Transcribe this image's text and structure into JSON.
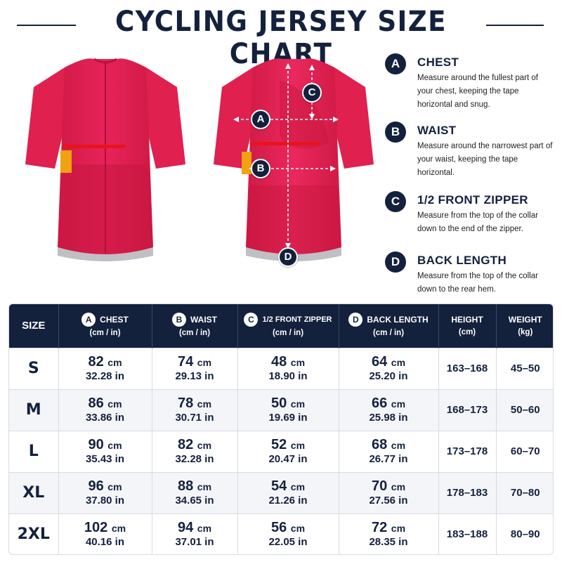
{
  "title": "CYCLING JERSEY SIZE CHART",
  "colors": {
    "navy": "#14213d",
    "jersey_red": "#e21f4f",
    "stripe_red": "#e8141c",
    "stripe_orange": "#f2a111"
  },
  "diagram_markers": [
    "A",
    "B",
    "C",
    "D"
  ],
  "legend": [
    {
      "letter": "A",
      "title": "CHEST",
      "desc": "Measure around the fullest part of your chest, keeping the tape horizontal and snug."
    },
    {
      "letter": "B",
      "title": "WAIST",
      "desc": "Measure around the narrowest part of your waist, keeping the tape horizontal."
    },
    {
      "letter": "C",
      "title": "1/2 FRONT ZIPPER",
      "desc": "Measure from the top of the collar down to the end of the zipper."
    },
    {
      "letter": "D",
      "title": "BACK LENGTH",
      "desc": "Measure from the top of the collar down to the rear hem."
    }
  ],
  "table": {
    "headers": {
      "size": "SIZE",
      "chest": {
        "badge": "A",
        "label": "CHEST",
        "unit": "(cm / in)"
      },
      "waist": {
        "badge": "B",
        "label": "WAIST",
        "unit": "(cm / in)"
      },
      "zipper": {
        "badge": "C",
        "label": "1/2 FRONT ZIPPER",
        "unit": "(cm / in)"
      },
      "back": {
        "badge": "D",
        "label": "BACK LENGTH",
        "unit": "(cm / in)"
      },
      "height": {
        "label": "HEIGHT",
        "unit": "(cm)"
      },
      "weight": {
        "label": "WEIGHT",
        "unit": "(kg)"
      }
    },
    "unit_cm": "cm",
    "rows": [
      {
        "size": "S",
        "chest_cm": "82",
        "chest_in": "32.28 in",
        "waist_cm": "74",
        "waist_in": "29.13 in",
        "zip_cm": "48",
        "zip_in": "18.90 in",
        "back_cm": "64",
        "back_in": "25.20 in",
        "height": "163–168",
        "weight": "45–50"
      },
      {
        "size": "M",
        "chest_cm": "86",
        "chest_in": "33.86 in",
        "waist_cm": "78",
        "waist_in": "30.71 in",
        "zip_cm": "50",
        "zip_in": "19.69 in",
        "back_cm": "66",
        "back_in": "25.98 in",
        "height": "168–173",
        "weight": "50–60"
      },
      {
        "size": "L",
        "chest_cm": "90",
        "chest_in": "35.43 in",
        "waist_cm": "82",
        "waist_in": "32.28 in",
        "zip_cm": "52",
        "zip_in": "20.47 in",
        "back_cm": "68",
        "back_in": "26.77 in",
        "height": "173–178",
        "weight": "60–70"
      },
      {
        "size": "XL",
        "chest_cm": "96",
        "chest_in": "37.80 in",
        "waist_cm": "88",
        "waist_in": "34.65 in",
        "zip_cm": "54",
        "zip_in": "21.26 in",
        "back_cm": "70",
        "back_in": "27.56 in",
        "height": "178–183",
        "weight": "70–80"
      },
      {
        "size": "2XL",
        "chest_cm": "102",
        "chest_in": "40.16 in",
        "waist_cm": "94",
        "waist_in": "37.01 in",
        "zip_cm": "56",
        "zip_in": "22.05 in",
        "back_cm": "72",
        "back_in": "28.35 in",
        "height": "183–188",
        "weight": "80–90"
      }
    ]
  }
}
